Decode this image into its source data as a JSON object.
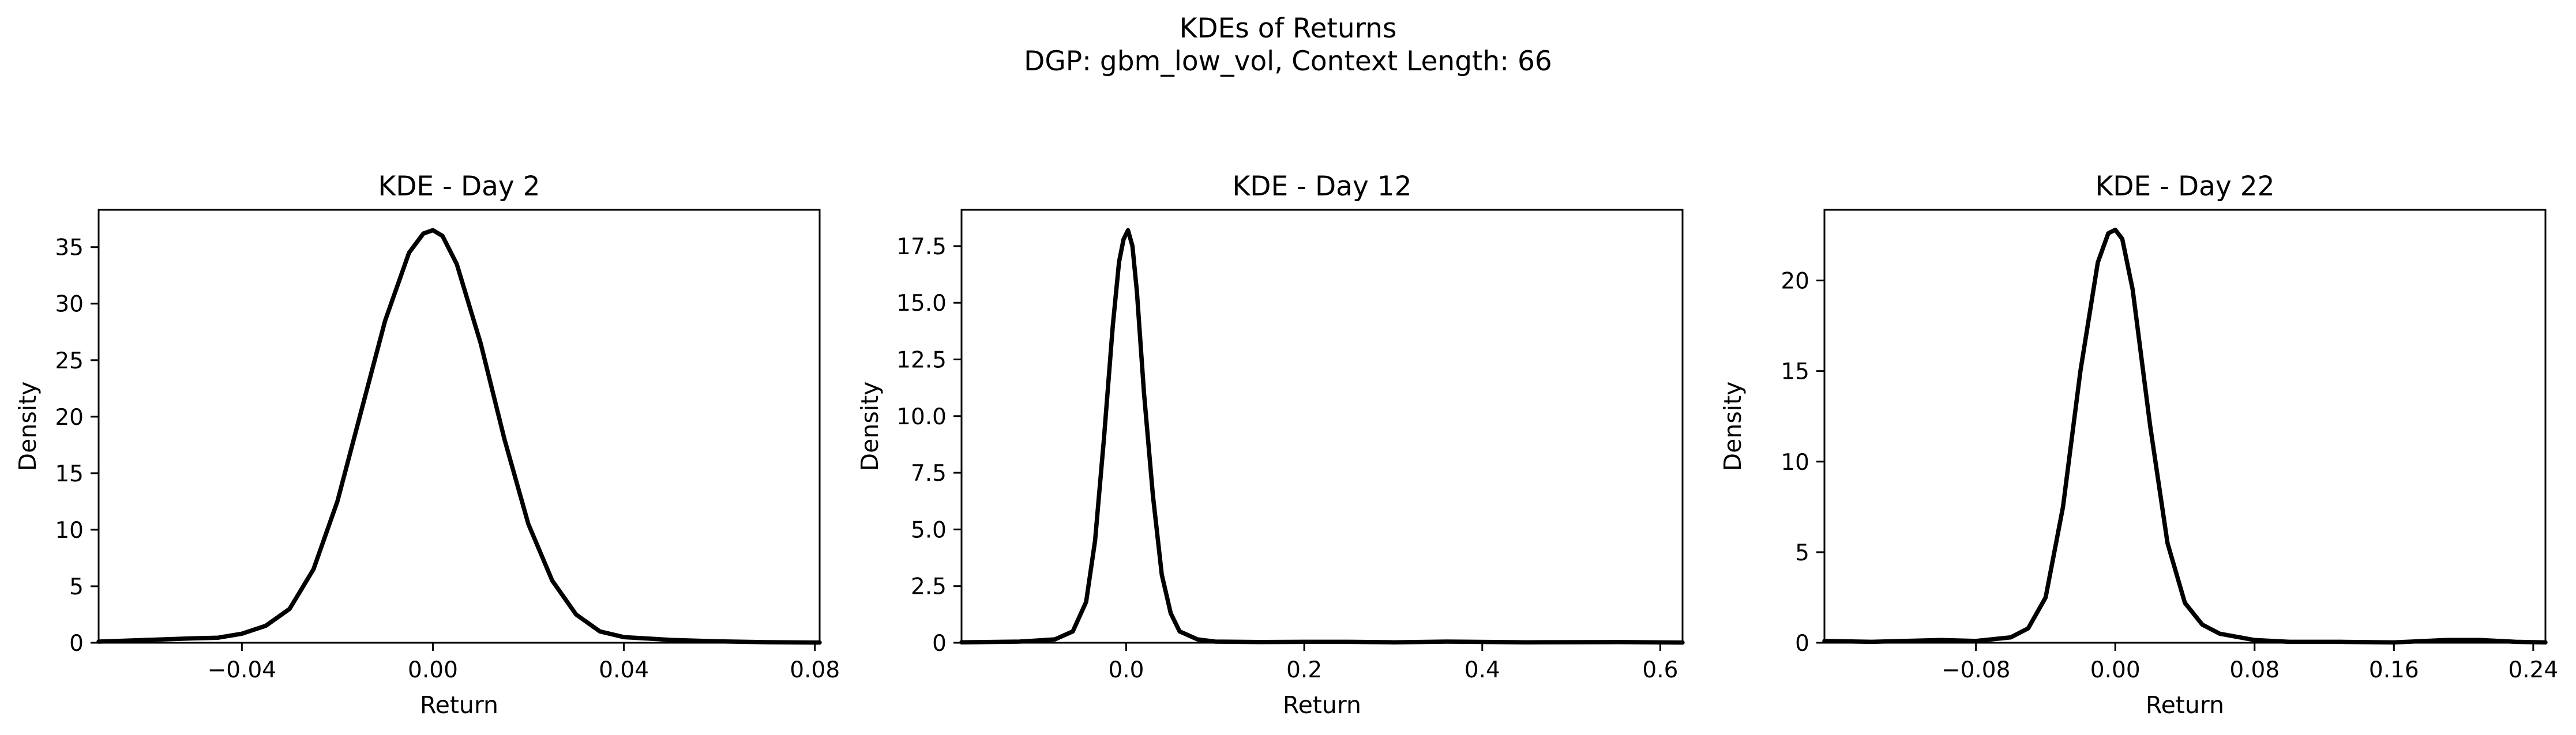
{
  "figure": {
    "title_line1": "KDEs of Returns",
    "title_line2": "DGP: gbm_low_vol, Context Length: 66"
  },
  "chart_data": [
    {
      "type": "line",
      "title": "KDE - Day 2",
      "xlabel": "Return",
      "ylabel": "Density",
      "xlim": [
        -0.07,
        0.081
      ],
      "ylim": [
        0,
        38.3
      ],
      "xticks": [
        -0.04,
        0.0,
        0.04,
        0.08
      ],
      "xtick_labels": [
        "−0.04",
        "0.00",
        "0.04",
        "0.08"
      ],
      "yticks": [
        0,
        5,
        10,
        15,
        20,
        25,
        30,
        35
      ],
      "ytick_labels": [
        "0",
        "5",
        "10",
        "15",
        "20",
        "25",
        "30",
        "35"
      ],
      "grid": false,
      "series": [
        {
          "color": "#000000",
          "x": [
            -0.07,
            -0.06,
            -0.05,
            -0.045,
            -0.04,
            -0.035,
            -0.03,
            -0.025,
            -0.02,
            -0.015,
            -0.01,
            -0.005,
            -0.002,
            0.0,
            0.002,
            0.005,
            0.01,
            0.015,
            0.02,
            0.025,
            0.03,
            0.035,
            0.04,
            0.05,
            0.06,
            0.07,
            0.081
          ],
          "y": [
            0.1,
            0.25,
            0.4,
            0.45,
            0.8,
            1.5,
            3.0,
            6.5,
            12.5,
            20.5,
            28.5,
            34.5,
            36.2,
            36.5,
            36.0,
            33.5,
            26.5,
            18.0,
            10.5,
            5.5,
            2.5,
            1.0,
            0.5,
            0.25,
            0.12,
            0.05,
            0.02
          ]
        }
      ]
    },
    {
      "type": "line",
      "title": "KDE - Day 12",
      "xlabel": "Return",
      "ylabel": "Density",
      "xlim": [
        -0.185,
        0.625
      ],
      "ylim": [
        0,
        19.1
      ],
      "xticks": [
        0.0,
        0.2,
        0.4,
        0.6
      ],
      "xtick_labels": [
        "0.0",
        "0.2",
        "0.4",
        "0.6"
      ],
      "yticks": [
        0,
        2.5,
        5.0,
        7.5,
        10.0,
        12.5,
        15.0,
        17.5
      ],
      "ytick_labels": [
        "0",
        "2.5",
        "5.0",
        "7.5",
        "10.0",
        "12.5",
        "15.0",
        "17.5"
      ],
      "grid": false,
      "series": [
        {
          "color": "#000000",
          "x": [
            -0.185,
            -0.12,
            -0.08,
            -0.06,
            -0.045,
            -0.035,
            -0.025,
            -0.015,
            -0.008,
            -0.003,
            0.002,
            0.007,
            0.012,
            0.02,
            0.03,
            0.04,
            0.05,
            0.06,
            0.08,
            0.1,
            0.15,
            0.2,
            0.25,
            0.3,
            0.36,
            0.45,
            0.55,
            0.625
          ],
          "y": [
            0.02,
            0.05,
            0.15,
            0.5,
            1.8,
            4.5,
            9.0,
            14.0,
            16.8,
            17.8,
            18.2,
            17.5,
            15.5,
            11.0,
            6.5,
            3.0,
            1.3,
            0.5,
            0.15,
            0.05,
            0.03,
            0.04,
            0.04,
            0.02,
            0.05,
            0.02,
            0.03,
            0.01
          ]
        }
      ]
    },
    {
      "type": "line",
      "title": "KDE - Day 22",
      "xlabel": "Return",
      "ylabel": "Density",
      "xlim": [
        -0.167,
        0.247
      ],
      "ylim": [
        0,
        23.9
      ],
      "xticks": [
        -0.08,
        0.0,
        0.08,
        0.16,
        0.24
      ],
      "xtick_labels": [
        "−0.08",
        "0.00",
        "0.08",
        "0.16",
        "0.24"
      ],
      "yticks": [
        0,
        5,
        10,
        15,
        20
      ],
      "ytick_labels": [
        "0",
        "5",
        "10",
        "15",
        "20"
      ],
      "grid": false,
      "series": [
        {
          "color": "#000000",
          "x": [
            -0.167,
            -0.14,
            -0.1,
            -0.08,
            -0.06,
            -0.05,
            -0.04,
            -0.03,
            -0.02,
            -0.01,
            -0.004,
            0.0,
            0.004,
            0.01,
            0.02,
            0.03,
            0.04,
            0.05,
            0.06,
            0.08,
            0.1,
            0.13,
            0.16,
            0.19,
            0.21,
            0.23,
            0.247
          ],
          "y": [
            0.1,
            0.05,
            0.15,
            0.1,
            0.3,
            0.8,
            2.5,
            7.5,
            15.0,
            21.0,
            22.6,
            22.8,
            22.3,
            19.5,
            12.0,
            5.5,
            2.2,
            1.0,
            0.5,
            0.15,
            0.05,
            0.05,
            0.02,
            0.15,
            0.15,
            0.05,
            0.02
          ]
        }
      ]
    }
  ]
}
